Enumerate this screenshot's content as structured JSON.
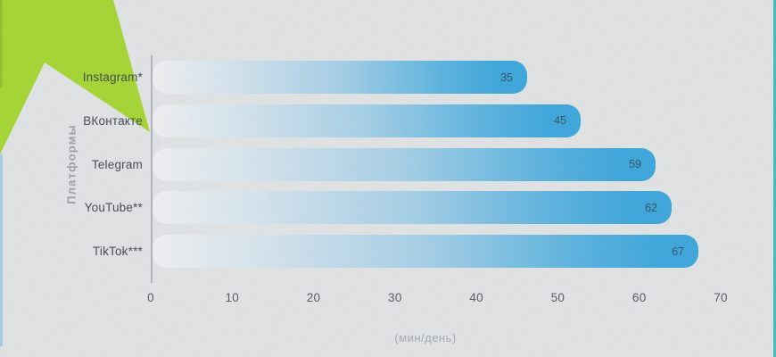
{
  "page": {
    "background_color": "#eef0f1",
    "accent_green": "#a6e01c",
    "accent_green_dark_edge": "#8cc813",
    "left_edge_line_color": "#a5d8f1",
    "right_edge_line_color": "#38bacd",
    "axis_line_color": "#b3b8bd"
  },
  "chart_data": {
    "type": "bar",
    "orientation": "horizontal",
    "title": "",
    "categories": [
      "Instagram*",
      "ВКонтакте",
      "Telegram",
      "YouTube**",
      "TikTok***"
    ],
    "values": [
      35,
      45,
      59,
      62,
      67
    ],
    "xlabel": "(мин/день)",
    "ylabel": "Платформы",
    "xticks": [
      0,
      10,
      20,
      30,
      40,
      50,
      60,
      70
    ],
    "xlim": [
      0,
      70
    ],
    "grid": false,
    "legend": false,
    "bar_gradient_start": "#ffffff",
    "bar_gradient_end": "#29a7e6",
    "value_label_color": "#24425e",
    "note": "bars rendered longer than axis scale in source infographic"
  }
}
